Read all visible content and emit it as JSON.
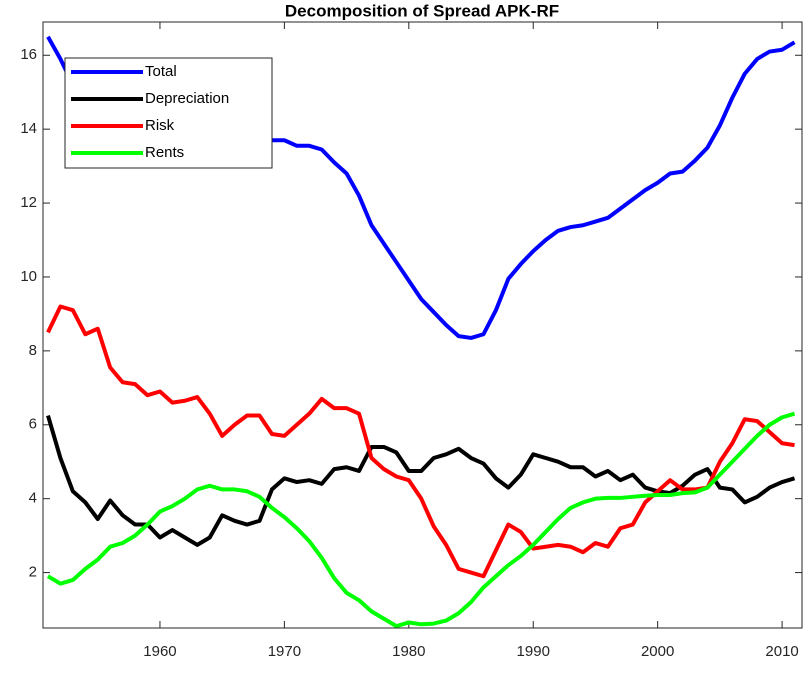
{
  "chart_data": {
    "type": "line",
    "title": "Decomposition of Spread APK-RF",
    "x": [
      1951,
      1952,
      1953,
      1954,
      1955,
      1956,
      1957,
      1958,
      1959,
      1960,
      1961,
      1962,
      1963,
      1964,
      1965,
      1966,
      1967,
      1968,
      1969,
      1970,
      1971,
      1972,
      1973,
      1974,
      1975,
      1976,
      1977,
      1978,
      1979,
      1980,
      1981,
      1982,
      1983,
      1984,
      1985,
      1986,
      1987,
      1988,
      1989,
      1990,
      1991,
      1992,
      1993,
      1994,
      1995,
      1996,
      1997,
      1998,
      1999,
      2000,
      2001,
      2002,
      2003,
      2004,
      2005,
      2006,
      2007,
      2008,
      2009,
      2010,
      2011
    ],
    "series": [
      {
        "name": "Total",
        "color": "#0000ff",
        "values": [
          16.5,
          15.9,
          15.2,
          15.0,
          14.8,
          14.6,
          14.4,
          14.3,
          14.2,
          14.1,
          14.0,
          13.95,
          13.9,
          13.85,
          13.8,
          13.75,
          13.7,
          13.7,
          13.7,
          13.7,
          13.55,
          13.55,
          13.45,
          13.1,
          12.8,
          12.2,
          11.4,
          10.9,
          10.4,
          9.9,
          9.4,
          9.05,
          8.7,
          8.4,
          8.35,
          8.45,
          9.1,
          9.95,
          10.35,
          10.7,
          11.0,
          11.25,
          11.35,
          11.4,
          11.5,
          11.6,
          11.85,
          12.1,
          12.35,
          12.55,
          12.8,
          12.85,
          13.15,
          13.5,
          14.1,
          14.85,
          15.5,
          15.9,
          16.1,
          16.15,
          16.35
        ]
      },
      {
        "name": "Depreciation",
        "color": "#000000",
        "values": [
          6.25,
          5.1,
          4.2,
          3.9,
          3.45,
          3.95,
          3.55,
          3.3,
          3.3,
          2.95,
          3.15,
          2.95,
          2.75,
          2.95,
          3.55,
          3.4,
          3.3,
          3.4,
          4.25,
          4.55,
          4.45,
          4.5,
          4.4,
          4.8,
          4.85,
          4.75,
          5.4,
          5.4,
          5.25,
          4.75,
          4.75,
          5.1,
          5.2,
          5.35,
          5.1,
          4.95,
          4.55,
          4.3,
          4.65,
          5.2,
          5.1,
          5.0,
          4.85,
          4.85,
          4.6,
          4.75,
          4.5,
          4.65,
          4.3,
          4.2,
          4.15,
          4.35,
          4.65,
          4.8,
          4.3,
          4.25,
          3.9,
          4.05,
          4.3,
          4.45,
          4.55
        ]
      },
      {
        "name": "Risk",
        "color": "#ff0000",
        "values": [
          8.5,
          9.2,
          9.1,
          8.45,
          8.6,
          7.55,
          7.15,
          7.1,
          6.8,
          6.9,
          6.6,
          6.65,
          6.75,
          6.3,
          5.7,
          6.0,
          6.25,
          6.25,
          5.75,
          5.7,
          6.0,
          6.3,
          6.7,
          6.45,
          6.45,
          6.3,
          5.1,
          4.8,
          4.6,
          4.5,
          4.0,
          3.25,
          2.75,
          2.1,
          2.0,
          1.9,
          2.6,
          3.3,
          3.1,
          2.65,
          2.7,
          2.75,
          2.7,
          2.55,
          2.8,
          2.7,
          3.2,
          3.3,
          3.9,
          4.2,
          4.5,
          4.25,
          4.25,
          4.3,
          5.0,
          5.5,
          6.15,
          6.1,
          5.8,
          5.5,
          5.45
        ]
      },
      {
        "name": "Rents",
        "color": "#00ff00",
        "values": [
          1.9,
          1.7,
          1.8,
          2.1,
          2.35,
          2.7,
          2.8,
          3.0,
          3.3,
          3.65,
          3.8,
          4.0,
          4.25,
          4.35,
          4.25,
          4.25,
          4.2,
          4.05,
          3.75,
          3.5,
          3.2,
          2.85,
          2.4,
          1.85,
          1.45,
          1.25,
          0.95,
          0.75,
          0.55,
          0.65,
          0.6,
          0.62,
          0.7,
          0.9,
          1.2,
          1.6,
          1.9,
          2.2,
          2.45,
          2.75,
          3.1,
          3.45,
          3.75,
          3.9,
          4.0,
          4.02,
          4.02,
          4.05,
          4.08,
          4.1,
          4.1,
          4.15,
          4.17,
          4.3,
          4.65,
          5.0,
          5.35,
          5.7,
          6.0,
          6.2,
          6.3
        ]
      }
    ],
    "xlim": [
      1950.6,
      2011.6
    ],
    "xticks": [
      1960,
      1970,
      1980,
      1990,
      2000,
      2010
    ],
    "ylim": [
      0.5,
      16.9
    ],
    "yticks": [
      2,
      4,
      6,
      8,
      10,
      12,
      14,
      16
    ],
    "legend": "upper left"
  }
}
